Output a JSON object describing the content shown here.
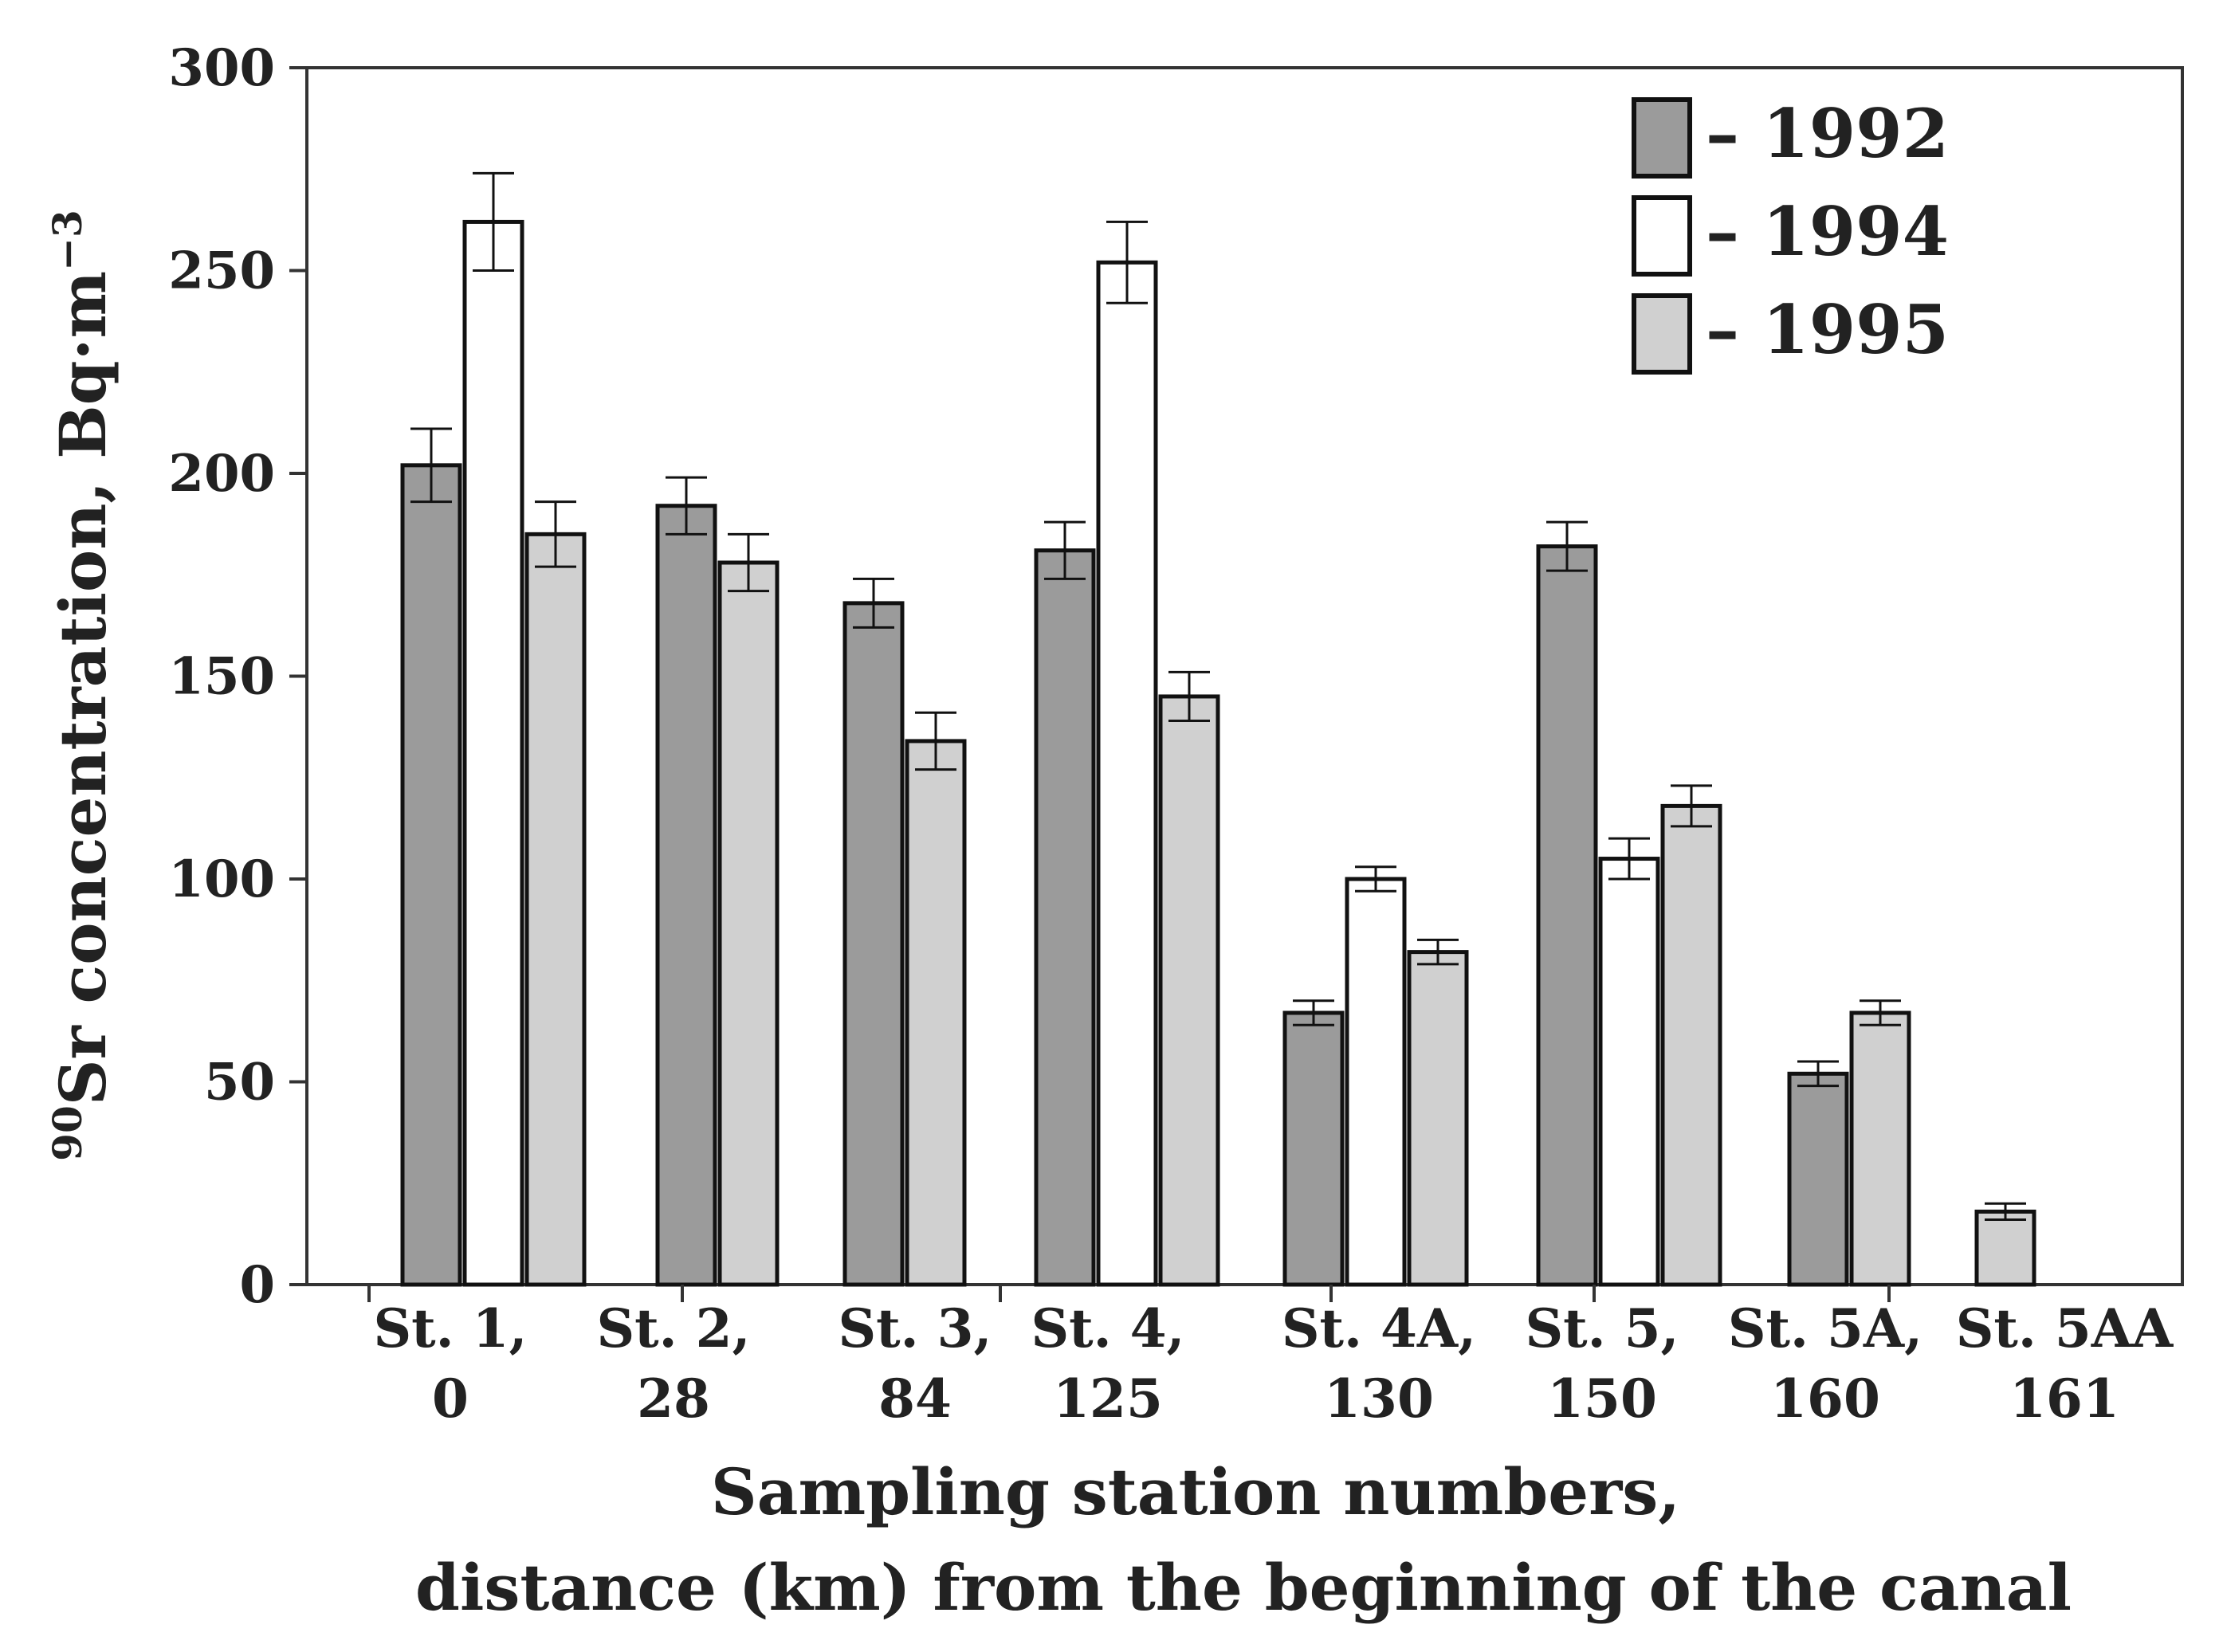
{
  "chart_data": {
    "type": "bar",
    "categories": [
      [
        "St. 1,",
        "0"
      ],
      [
        "St. 2,",
        "28"
      ],
      [
        "St. 3,",
        "84"
      ],
      [
        "St. 4,",
        "125"
      ],
      [
        "St. 4A,",
        "130"
      ],
      [
        "St. 5,",
        "150"
      ],
      [
        "St. 5A,",
        "160"
      ],
      [
        "St. 5AA",
        "161"
      ]
    ],
    "series": [
      {
        "name": "1992",
        "color": "#9b9b9b",
        "values": [
          202,
          192,
          168,
          181,
          67,
          182,
          52,
          null
        ],
        "errors": [
          9,
          7,
          6,
          7,
          3,
          6,
          3,
          null
        ]
      },
      {
        "name": "1994",
        "color": "#ffffff",
        "values": [
          262,
          null,
          null,
          252,
          100,
          105,
          null,
          null
        ],
        "errors": [
          12,
          null,
          null,
          10,
          3,
          5,
          null,
          null
        ]
      },
      {
        "name": "1995",
        "color": "#d0d0d0",
        "values": [
          185,
          178,
          134,
          145,
          82,
          118,
          67,
          18
        ],
        "errors": [
          8,
          7,
          7,
          6,
          3,
          5,
          3,
          2
        ]
      }
    ],
    "yticks": [
      0,
      50,
      100,
      150,
      200,
      250,
      300
    ],
    "ylim": [
      0,
      300
    ],
    "ylabel": {
      "superscript": "90",
      "main": "Sr concentration, Bq·m",
      "unit_superscript": "−3"
    },
    "xlabel": [
      "Sampling station numbers,",
      "distance (km) from the beginning of the canal"
    ],
    "legend": {
      "position": "top-right",
      "prefix": "– "
    },
    "grid": false
  }
}
